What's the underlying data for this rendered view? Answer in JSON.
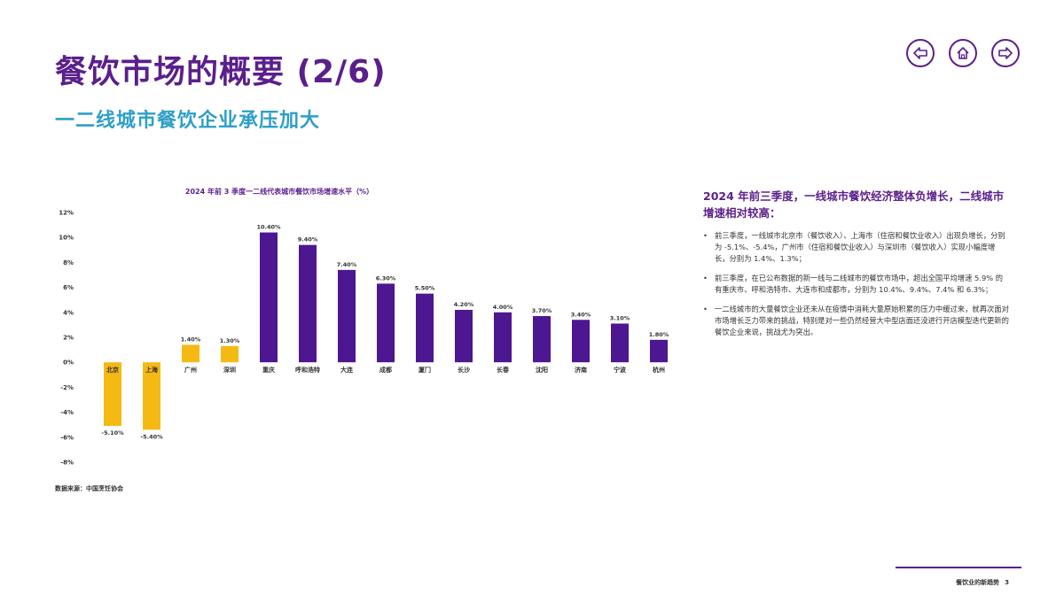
{
  "page": {
    "title": "餐饮市场的概要 (2/6)",
    "subtitle": "一二线城市餐饮企业承压加大"
  },
  "nav": {
    "back_icon": "arrow-left-icon",
    "home_icon": "home-icon",
    "forward_icon": "arrow-right-icon"
  },
  "chart_data": {
    "type": "bar",
    "title": "2024 年前 3 季度一二线代表城市餐饮市场增速水平（%）",
    "categories": [
      "北京",
      "上海",
      "广州",
      "深圳",
      "重庆",
      "呼和浩特",
      "大连",
      "成都",
      "厦门",
      "长沙",
      "长春",
      "沈阳",
      "济南",
      "宁波",
      "杭州"
    ],
    "values": [
      -5.1,
      -5.4,
      1.4,
      1.3,
      10.4,
      9.4,
      7.4,
      6.3,
      5.5,
      4.2,
      4.0,
      3.7,
      3.4,
      3.1,
      1.8
    ],
    "value_labels": [
      "-5.10%",
      "-5.40%",
      "1.40%",
      "1.30%",
      "10.40%",
      "9.40%",
      "7.40%",
      "6.30%",
      "5.50%",
      "4.20%",
      "4.00%",
      "3.70%",
      "3.40%",
      "3.10%",
      "1.80%"
    ],
    "yticks": [
      12,
      10,
      8,
      6,
      4,
      2,
      0,
      -2,
      -4,
      -6,
      -8
    ],
    "ytick_labels": [
      "12%",
      "10%",
      "8%",
      "6%",
      "4%",
      "2%",
      "0%",
      "-2%",
      "-4%",
      "-6%",
      "-8%"
    ],
    "ylim": [
      -8,
      12
    ],
    "xlabel": "",
    "ylabel": "",
    "grid": false,
    "colors": {
      "highlight": "#f5b914",
      "default": "#4c1791"
    },
    "highlighted_categories": [
      "北京",
      "上海",
      "广州",
      "深圳"
    ]
  },
  "source": "数据来源：中国烹饪协会",
  "panel": {
    "heading": "2024 年前三季度，一线城市餐饮经济整体负增长，二线城市增速相对较高：",
    "bullet_symbol": "•",
    "bullets": [
      "前三季度，一线城市北京市（餐饮收入）、上海市（住宿和餐饮业收入）出现负增长，分别为 -5.1%、-5.4%，广州市（住宿和餐饮业收入）与深圳市（餐饮收入）实现小幅度增长，分别为 1.4%、1.3%；",
      "前三季度，在已公布数据的新一线与二线城市的餐饮市场中，超出全国平均增速 5.9% 的有重庆市、呼和浩特市、大连市和成都市，分别为 10.4%、9.4%、7.4% 和 6.3%；",
      "一二线城市的大量餐饮企业还未从在疫情中消耗大量原始积累的压力中缓过来，就再次面对市场增长乏力带来的挑战，特别是对一些仍然经营大中型店面还没进行开店模型迭代更新的餐饮企业来说，挑战尤为突出。"
    ]
  },
  "footer": {
    "text": "餐饮业的新趋势",
    "page_number": "3"
  },
  "colors": {
    "title": "#5b1f8c",
    "subtitle": "#2e9fc7",
    "accent": "#5b1f8c"
  }
}
